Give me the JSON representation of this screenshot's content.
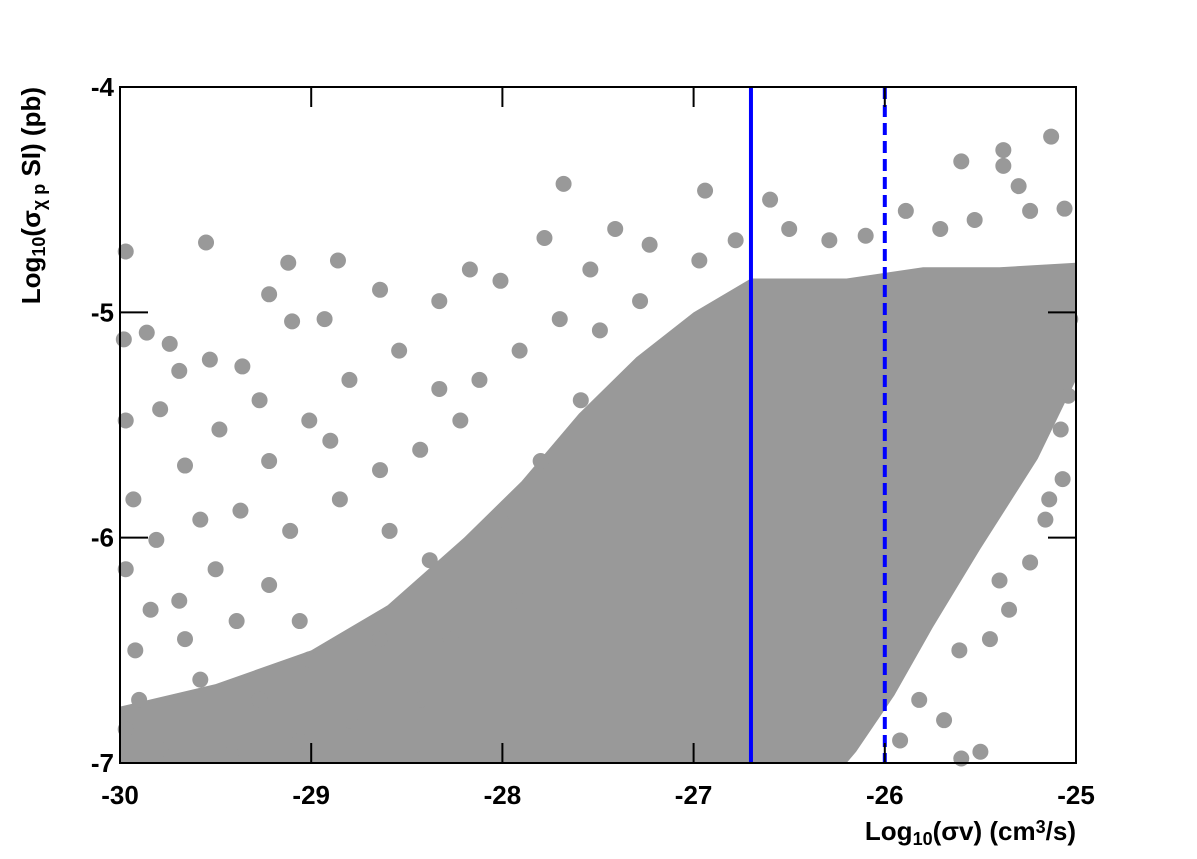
{
  "chart_data": {
    "type": "scatter",
    "xlabel": [
      {
        "text": "Log"
      },
      {
        "text": "10",
        "shift": "sub"
      },
      {
        "text": "(σv) (cm"
      },
      {
        "text": "3",
        "shift": "sup"
      },
      {
        "text": "/s)"
      }
    ],
    "ylabel": [
      {
        "text": "Log"
      },
      {
        "text": "10",
        "shift": "sub"
      },
      {
        "text": "(σ"
      },
      {
        "text": "χ p",
        "shift": "sub"
      },
      {
        "text": " SI) (pb)"
      }
    ],
    "xlim": [
      -30,
      -25
    ],
    "ylim": [
      -7,
      -4
    ],
    "xticks": [
      -30,
      -29,
      -28,
      -27,
      -26,
      -25
    ],
    "yticks": [
      -7,
      -6,
      -5,
      -4
    ],
    "color": "#999999",
    "dense_region": {
      "x": [
        -30,
        -30,
        -29.5,
        -29,
        -28.6,
        -28.2,
        -27.9,
        -27.6,
        -27.3,
        -27,
        -26.7,
        -26.2,
        -25.8,
        -25.4,
        -25,
        -25,
        -25.2,
        -25.5,
        -25.75,
        -25.95,
        -26.15,
        -26.2
      ],
      "y": [
        -7,
        -6.75,
        -6.65,
        -6.5,
        -6.3,
        -6.0,
        -5.75,
        -5.45,
        -5.2,
        -5.0,
        -4.85,
        -4.85,
        -4.8,
        -4.8,
        -4.78,
        -5.3,
        -5.65,
        -6.05,
        -6.4,
        -6.7,
        -6.95,
        -7
      ]
    },
    "x": [
      -29.97,
      -29.55,
      -27.68,
      -26.94,
      -26.6,
      -25.6,
      -25.38,
      -25.13,
      -25.38,
      -25.3,
      -29.12,
      -28.86,
      -29.1,
      -29.74,
      -29.98,
      -29.86,
      -29.53,
      -29.36,
      -29.69,
      -29.79,
      -29.97,
      -29.66,
      -29.48,
      -29.22,
      -29.93,
      -29.81,
      -29.58,
      -29.37,
      -29.97,
      -29.84,
      -29.69,
      -29.5,
      -29.22,
      -29.92,
      -29.66,
      -28.85,
      -28.64,
      -28.43,
      -28.22,
      -28.8,
      -28.54,
      -28.33,
      -28.17,
      -28.01,
      -27.78,
      -27.54,
      -27.41,
      -27.23,
      -28.93,
      -28.64,
      -29.22,
      -29.01,
      -28.59,
      -28.38,
      -28.01,
      -27.8,
      -27.49,
      -27.28,
      -26.97,
      -26.78,
      -26.5,
      -26.29,
      -26.1,
      -25.89,
      -25.71,
      -25.53,
      -25.24,
      -25.06,
      -25.04,
      -25.08,
      -25.07,
      -25.16,
      -25.24,
      -25.35,
      -25.45,
      -25.61,
      -25.69,
      -25.6,
      -25.5,
      -25.82,
      -25.92,
      -25.4,
      -25.14,
      -25.03,
      -29.97,
      -29.9,
      -29.58,
      -29.27,
      -28.8,
      -28.43,
      -29.79,
      -29.42,
      -29.06,
      -28.27,
      -27.91,
      -28.64,
      -29.01,
      -28.12,
      -27.91,
      -27.7,
      -27.59,
      -28.33,
      -28.9,
      -29.27,
      -29.11,
      -29.39,
      -29.06
    ],
    "y": [
      -4.73,
      -4.69,
      -4.43,
      -4.46,
      -4.5,
      -4.33,
      -4.28,
      -4.22,
      -4.35,
      -4.44,
      -4.78,
      -4.77,
      -5.04,
      -5.14,
      -5.12,
      -5.09,
      -5.21,
      -5.24,
      -5.26,
      -5.43,
      -5.48,
      -5.68,
      -5.52,
      -5.66,
      -5.83,
      -6.01,
      -5.92,
      -5.88,
      -6.14,
      -6.32,
      -6.28,
      -6.14,
      -6.21,
      -6.5,
      -6.45,
      -5.83,
      -5.7,
      -5.61,
      -5.48,
      -5.3,
      -5.17,
      -4.95,
      -4.81,
      -4.86,
      -4.67,
      -4.81,
      -4.63,
      -4.7,
      -5.03,
      -4.9,
      -4.92,
      -5.48,
      -5.97,
      -6.1,
      -5.92,
      -5.66,
      -5.08,
      -4.95,
      -4.77,
      -4.68,
      -4.63,
      -4.68,
      -4.66,
      -4.55,
      -4.63,
      -4.59,
      -4.55,
      -4.54,
      -5.37,
      -5.52,
      -5.74,
      -5.92,
      -6.11,
      -6.32,
      -6.45,
      -6.5,
      -6.81,
      -6.98,
      -6.95,
      -6.72,
      -6.9,
      -6.19,
      -5.83,
      -5.03,
      -6.85,
      -6.72,
      -6.63,
      -6.72,
      -6.81,
      -6.72,
      -6.94,
      -6.96,
      -6.9,
      -6.45,
      -6.28,
      -6.45,
      -6.54,
      -5.3,
      -5.17,
      -5.03,
      -5.39,
      -5.34,
      -5.57,
      -5.39,
      -5.97,
      -6.37,
      -6.37
    ],
    "vlines": [
      {
        "x": -26.7,
        "color": "#0000ff",
        "style": "solid"
      },
      {
        "x": -26,
        "color": "#0000ff",
        "style": "dashed"
      }
    ]
  }
}
